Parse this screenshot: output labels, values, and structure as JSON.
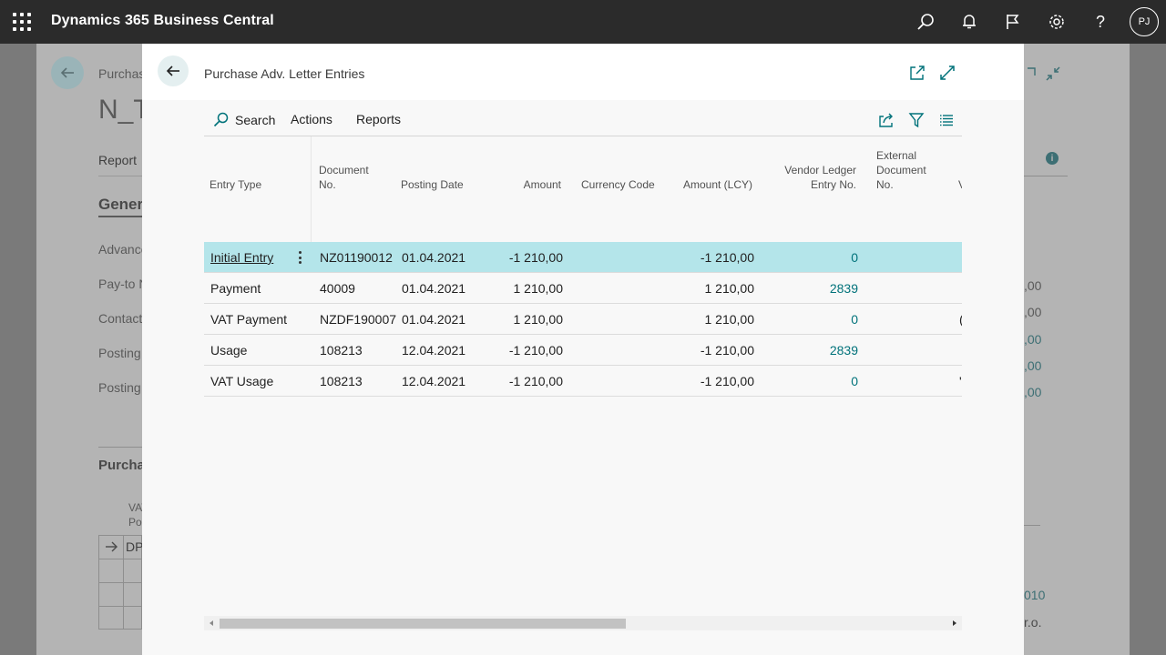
{
  "app": {
    "title": "Dynamics 365 Business Central",
    "avatar_initials": "PJ"
  },
  "background_page": {
    "breadcrumb": "Purchas",
    "title": "N_T",
    "report_tab": "Report",
    "section_general": "Gener",
    "fields": [
      "Advance",
      "Pay-to N",
      "Contact",
      "Posting",
      "Posting"
    ],
    "amounts": [
      ",00",
      ",00",
      ",00",
      ",00",
      ",00"
    ],
    "section_lines": "Purcha",
    "lines_col_header_1": "VAT",
    "lines_col_header_2": "Pos",
    "lines_row_value": "DP",
    "right_value_1": "010",
    "right_value_2": "r.o."
  },
  "modal": {
    "title": "Purchase Adv. Letter Entries",
    "actions": {
      "search": "Search",
      "actions": "Actions",
      "reports": "Reports"
    },
    "columns": {
      "entry_type": "Entry Type",
      "document_no_1": "Document",
      "document_no_2": "No.",
      "posting_date": "Posting Date",
      "amount": "Amount",
      "currency_code": "Currency Code",
      "amount_lcy": "Amount (LCY)",
      "vle_1": "Vendor Ledger",
      "vle_2": "Entry No.",
      "ext_1": "External",
      "ext_2": "Document",
      "ext_3": "No.",
      "trunc": "V"
    },
    "rows": [
      {
        "entry_type": "Initial Entry",
        "document_no": "NZ01190012",
        "posting_date": "01.04.2021",
        "amount": "-1 210,00",
        "currency_code": "",
        "amount_lcy": "-1 210,00",
        "vle": "0",
        "ext": "",
        "trunc": ""
      },
      {
        "entry_type": "Payment",
        "document_no": "40009",
        "posting_date": "01.04.2021",
        "amount": "1 210,00",
        "currency_code": "",
        "amount_lcy": "1 210,00",
        "vle": "2839",
        "ext": "",
        "trunc": ""
      },
      {
        "entry_type": "VAT Payment",
        "document_no": "NZDF190007",
        "posting_date": "01.04.2021",
        "amount": "1 210,00",
        "currency_code": "",
        "amount_lcy": "1 210,00",
        "vle": "0",
        "ext": "",
        "trunc": "("
      },
      {
        "entry_type": "Usage",
        "document_no": "108213",
        "posting_date": "12.04.2021",
        "amount": "-1 210,00",
        "currency_code": "",
        "amount_lcy": "-1 210,00",
        "vle": "2839",
        "ext": "",
        "trunc": ""
      },
      {
        "entry_type": "VAT Usage",
        "document_no": "108213",
        "posting_date": "12.04.2021",
        "amount": "-1 210,00",
        "currency_code": "",
        "amount_lcy": "-1 210,00",
        "vle": "0",
        "ext": "",
        "trunc": "'"
      }
    ]
  },
  "icons": [
    "waffle-icon",
    "search-icon",
    "bell-icon",
    "flag-icon",
    "gear-icon",
    "help-icon",
    "back-arrow-icon",
    "open-new-window-icon",
    "expand-icon",
    "collapse-icon",
    "share-icon",
    "filter-icon",
    "list-icon",
    "info-icon",
    "arrow-right-icon",
    "more-options-icon"
  ],
  "colors": {
    "topbar": "#2b2b2b",
    "accent_teal": "#00727a",
    "selected_row": "#b4e5ea"
  }
}
